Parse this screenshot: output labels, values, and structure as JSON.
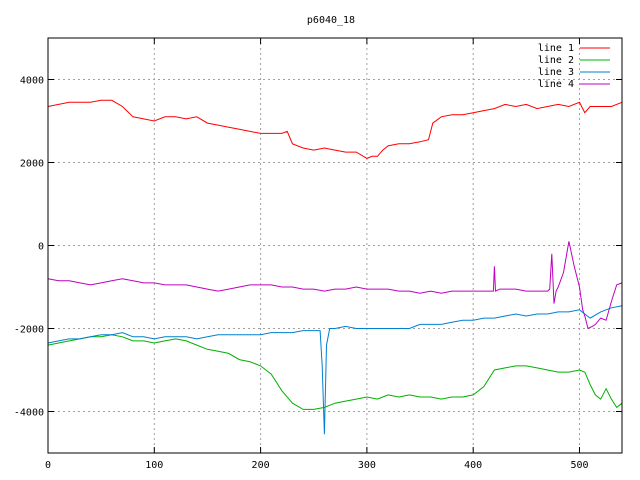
{
  "chart_data": {
    "type": "line",
    "title": "p6040_18",
    "xlabel": "",
    "ylabel": "",
    "xlim": [
      0,
      540
    ],
    "ylim": [
      -5000,
      5000
    ],
    "xticks": [
      0,
      100,
      200,
      300,
      400,
      500
    ],
    "yticks": [
      -4000,
      -2000,
      0,
      2000,
      4000
    ],
    "xtick_labels": [
      "0",
      "100",
      "200",
      "300",
      "400",
      "500"
    ],
    "ytick_labels": [
      "-4000",
      "-2000",
      "0",
      "2000",
      "4000"
    ],
    "grid": true,
    "legend_position": "top-right",
    "series": [
      {
        "name": "line 1",
        "color": "#ff0000",
        "x": [
          0,
          10,
          20,
          30,
          40,
          50,
          60,
          70,
          80,
          90,
          100,
          110,
          120,
          130,
          140,
          150,
          160,
          170,
          180,
          190,
          200,
          210,
          220,
          225,
          230,
          240,
          250,
          260,
          270,
          280,
          290,
          300,
          305,
          310,
          315,
          320,
          330,
          340,
          350,
          358,
          362,
          370,
          380,
          390,
          400,
          410,
          420,
          430,
          440,
          450,
          460,
          470,
          480,
          490,
          500,
          505,
          510,
          520,
          530,
          540
        ],
        "y": [
          3350,
          3400,
          3450,
          3450,
          3450,
          3500,
          3500,
          3350,
          3100,
          3050,
          3000,
          3100,
          3100,
          3050,
          3100,
          2950,
          2900,
          2850,
          2800,
          2750,
          2700,
          2700,
          2700,
          2750,
          2450,
          2350,
          2300,
          2350,
          2300,
          2250,
          2250,
          2100,
          2150,
          2150,
          2300,
          2400,
          2450,
          2450,
          2500,
          2550,
          2950,
          3100,
          3150,
          3150,
          3200,
          3250,
          3300,
          3400,
          3350,
          3400,
          3300,
          3350,
          3400,
          3350,
          3450,
          3200,
          3350,
          3350,
          3350,
          3450
        ]
      },
      {
        "name": "line 2",
        "color": "#00b000",
        "x": [
          0,
          10,
          20,
          30,
          40,
          50,
          60,
          70,
          80,
          90,
          100,
          110,
          120,
          130,
          140,
          150,
          160,
          170,
          180,
          190,
          200,
          210,
          220,
          230,
          240,
          250,
          260,
          270,
          280,
          290,
          300,
          310,
          320,
          330,
          340,
          350,
          360,
          370,
          380,
          390,
          400,
          410,
          420,
          430,
          440,
          450,
          460,
          470,
          480,
          490,
          500,
          505,
          510,
          515,
          520,
          525,
          530,
          535,
          540
        ],
        "y": [
          -2400,
          -2350,
          -2300,
          -2250,
          -2200,
          -2200,
          -2150,
          -2200,
          -2300,
          -2300,
          -2350,
          -2300,
          -2250,
          -2300,
          -2400,
          -2500,
          -2550,
          -2600,
          -2750,
          -2800,
          -2900,
          -3100,
          -3500,
          -3800,
          -3950,
          -3950,
          -3900,
          -3800,
          -3750,
          -3700,
          -3650,
          -3700,
          -3600,
          -3650,
          -3600,
          -3650,
          -3650,
          -3700,
          -3650,
          -3650,
          -3600,
          -3400,
          -3000,
          -2950,
          -2900,
          -2900,
          -2950,
          -3000,
          -3050,
          -3050,
          -3000,
          -3050,
          -3350,
          -3600,
          -3700,
          -3450,
          -3700,
          -3900,
          -3800
        ]
      },
      {
        "name": "line 3",
        "color": "#0080d0",
        "x": [
          0,
          10,
          20,
          30,
          40,
          50,
          60,
          70,
          80,
          90,
          100,
          110,
          120,
          130,
          140,
          150,
          160,
          170,
          180,
          190,
          200,
          210,
          220,
          230,
          240,
          250,
          256,
          258,
          260,
          262,
          265,
          270,
          280,
          290,
          300,
          310,
          320,
          330,
          340,
          350,
          360,
          370,
          380,
          390,
          400,
          410,
          420,
          430,
          440,
          450,
          460,
          470,
          480,
          490,
          500,
          505,
          510,
          520,
          530,
          540
        ],
        "y": [
          -2350,
          -2300,
          -2250,
          -2250,
          -2200,
          -2150,
          -2150,
          -2100,
          -2200,
          -2200,
          -2250,
          -2200,
          -2200,
          -2200,
          -2250,
          -2200,
          -2150,
          -2150,
          -2150,
          -2150,
          -2150,
          -2100,
          -2100,
          -2100,
          -2050,
          -2050,
          -2050,
          -2900,
          -4550,
          -2400,
          -2000,
          -2000,
          -1950,
          -2000,
          -2000,
          -2000,
          -2000,
          -2000,
          -2000,
          -1900,
          -1900,
          -1900,
          -1850,
          -1800,
          -1800,
          -1750,
          -1750,
          -1700,
          -1650,
          -1700,
          -1650,
          -1650,
          -1600,
          -1600,
          -1550,
          -1650,
          -1750,
          -1600,
          -1500,
          -1450
        ]
      },
      {
        "name": "line 4",
        "color": "#c000c0",
        "x": [
          0,
          10,
          20,
          30,
          40,
          50,
          60,
          70,
          80,
          90,
          100,
          110,
          120,
          130,
          140,
          150,
          160,
          170,
          180,
          190,
          200,
          210,
          220,
          230,
          240,
          250,
          260,
          270,
          280,
          290,
          300,
          310,
          320,
          330,
          340,
          350,
          360,
          370,
          380,
          390,
          400,
          410,
          419,
          420,
          421,
          425,
          430,
          440,
          450,
          460,
          470,
          472,
          474,
          476,
          478,
          480,
          485,
          490,
          495,
          500,
          503,
          505,
          508,
          512,
          515,
          520,
          525,
          530,
          535,
          540
        ],
        "y": [
          -800,
          -850,
          -850,
          -900,
          -950,
          -900,
          -850,
          -800,
          -850,
          -900,
          -900,
          -950,
          -950,
          -950,
          -1000,
          -1050,
          -1100,
          -1050,
          -1000,
          -950,
          -950,
          -950,
          -1000,
          -1000,
          -1050,
          -1050,
          -1100,
          -1050,
          -1050,
          -1000,
          -1050,
          -1050,
          -1050,
          -1100,
          -1100,
          -1150,
          -1100,
          -1150,
          -1100,
          -1100,
          -1100,
          -1100,
          -1100,
          -500,
          -1100,
          -1050,
          -1050,
          -1050,
          -1100,
          -1100,
          -1100,
          -1050,
          -200,
          -1400,
          -1100,
          -1000,
          -650,
          100,
          -500,
          -1000,
          -1550,
          -1700,
          -2000,
          -1950,
          -1900,
          -1750,
          -1800,
          -1350,
          -950,
          -900
        ]
      }
    ]
  }
}
